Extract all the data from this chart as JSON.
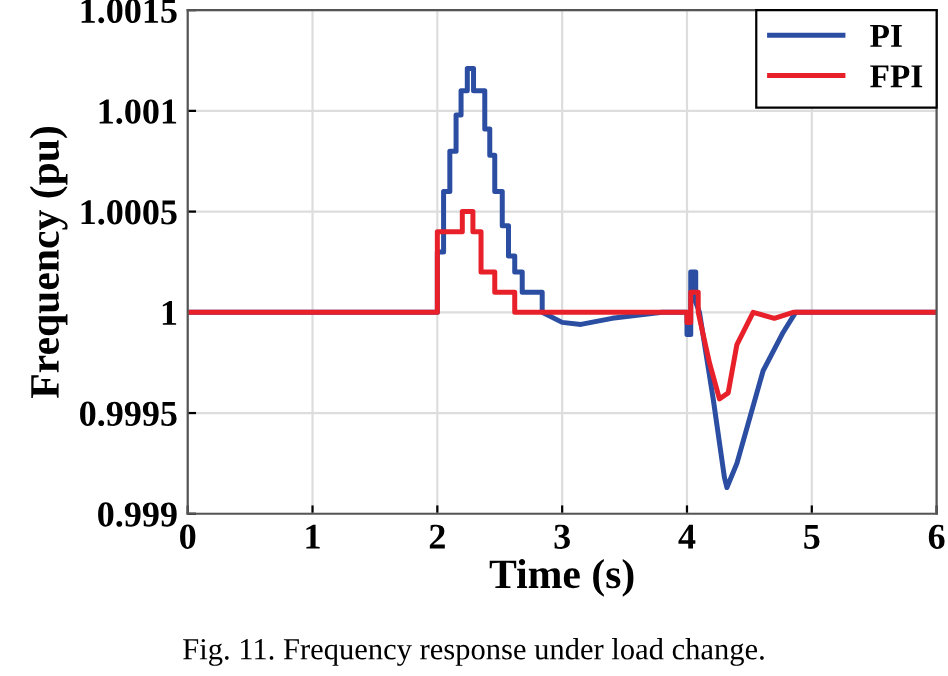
{
  "chart_data": {
    "type": "line",
    "xlabel": "Time (s)",
    "ylabel": "Frequency (pu)",
    "annotations": [
      "Fig. 11. Frequency response under load change."
    ],
    "xlim": [
      0,
      6
    ],
    "xticks": [
      0,
      1,
      2,
      3,
      4,
      5,
      6
    ],
    "ylim": [
      0.999,
      1.0015
    ],
    "yticks": [
      0.999,
      0.9995,
      1,
      1.0005,
      1.001,
      1.0015
    ],
    "grid": true,
    "legend": "top right",
    "line_style": "solid",
    "marker": "none",
    "series": [
      {
        "name": "PI",
        "color": "#2b4ea2",
        "x": [
          0,
          2.0,
          2.0,
          2.05,
          2.05,
          2.1,
          2.1,
          2.15,
          2.15,
          2.19,
          2.19,
          2.24,
          2.24,
          2.29,
          2.29,
          2.38,
          2.38,
          2.42,
          2.42,
          2.46,
          2.46,
          2.52,
          2.52,
          2.57,
          2.57,
          2.62,
          2.62,
          2.68,
          2.68,
          2.84,
          2.84,
          3.0,
          3.15,
          3.4,
          3.8,
          4.0,
          4.0,
          4.03,
          4.03,
          4.07,
          4.07,
          4.1,
          4.21,
          4.3,
          4.32,
          4.4,
          4.61,
          4.77,
          4.87,
          6
        ],
        "values": [
          1,
          1,
          1.0003,
          1.0003,
          1.0006,
          1.0006,
          1.0008,
          1.0008,
          1.00098,
          1.00098,
          1.0011,
          1.0011,
          1.00121,
          1.00121,
          1.0011,
          1.0011,
          1.00091,
          1.00091,
          1.00078,
          1.00078,
          1.0006,
          1.0006,
          1.00043,
          1.00043,
          1.00028,
          1.00028,
          1.0002,
          1.0002,
          1.0001,
          1.0001,
          1,
          0.99995,
          0.99994,
          0.99997,
          1,
          1,
          0.99989,
          0.99989,
          1.0002,
          1.0002,
          1.00005,
          1,
          0.99957,
          0.99918,
          0.99913,
          0.99925,
          0.99971,
          0.9999,
          1,
          1
        ]
      },
      {
        "name": "FPI",
        "color": "#e8202a",
        "x": [
          0,
          2.0,
          2.0,
          2.2,
          2.2,
          2.285,
          2.285,
          2.35,
          2.35,
          2.46,
          2.46,
          2.62,
          2.62,
          4.0,
          4.0,
          4.03,
          4.03,
          4.09,
          4.09,
          4.18,
          4.26,
          4.33,
          4.4,
          4.53,
          4.7,
          4.85,
          6
        ],
        "values": [
          1,
          1,
          1.0004,
          1.0004,
          1.0005,
          1.0005,
          1.0004,
          1.0004,
          1.0002,
          1.0002,
          1.0001,
          1.0001,
          1,
          1,
          0.99995,
          0.99995,
          1.0001,
          1.0001,
          1,
          0.99975,
          0.99957,
          0.9996,
          0.99984,
          1,
          0.99997,
          1,
          1
        ]
      }
    ]
  }
}
